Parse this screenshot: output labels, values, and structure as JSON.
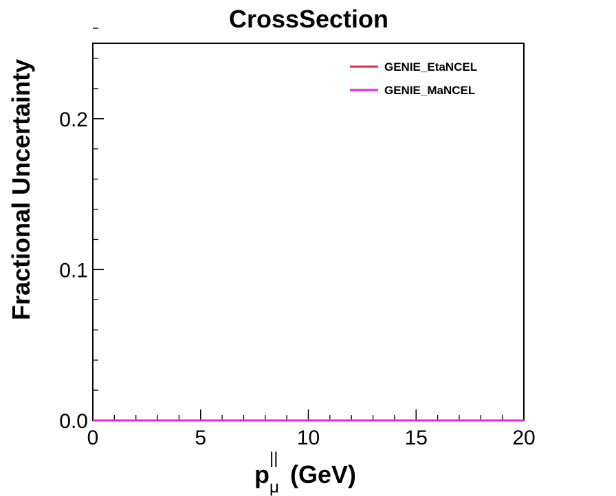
{
  "chart_data": {
    "type": "line",
    "title": "CrossSection",
    "ylabel": "Fractional Uncertainty",
    "xlabel": {
      "main": "p",
      "superscript": "||",
      "subscript": "μ",
      "unit": "(GeV)"
    },
    "xlim": [
      0,
      20
    ],
    "ylim": [
      0,
      0.25
    ],
    "x_ticks": [
      {
        "value": 0,
        "label": "0"
      },
      {
        "value": 5,
        "label": "5"
      },
      {
        "value": 10,
        "label": "10"
      },
      {
        "value": 15,
        "label": "15"
      },
      {
        "value": 20,
        "label": "20"
      }
    ],
    "y_ticks": [
      {
        "value": 0,
        "label": "0.0"
      },
      {
        "value": 0.1,
        "label": "0.1"
      },
      {
        "value": 0.2,
        "label": "0.2"
      }
    ],
    "x_minor_step": 1,
    "y_minor_step": 0.02,
    "grid": false,
    "legend_position": "top-right",
    "series": [
      {
        "name": "GENIE_EtaNCEL",
        "color": "#e8283a",
        "x": [
          0,
          20
        ],
        "y": [
          0,
          0
        ]
      },
      {
        "name": "GENIE_MaNCEL",
        "color": "#ee1fee",
        "x": [
          0,
          20
        ],
        "y": [
          0,
          0
        ]
      }
    ]
  }
}
